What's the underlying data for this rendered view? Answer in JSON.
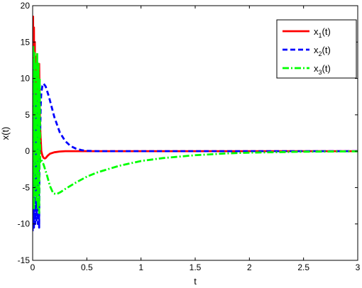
{
  "chart_data": {
    "type": "line",
    "xlabel": "t",
    "ylabel": "x(t)",
    "xlim": [
      0,
      3
    ],
    "ylim": [
      -15,
      20
    ],
    "xticks": [
      0,
      0.5,
      1,
      1.5,
      2,
      2.5,
      3
    ],
    "xtick_labels": [
      "0",
      "0.5",
      "1",
      "1.5",
      "2",
      "2.5",
      "3"
    ],
    "yticks": [
      -15,
      -10,
      -5,
      0,
      5,
      10,
      15,
      20
    ],
    "ytick_labels": [
      "-15",
      "-10",
      "-5",
      "0",
      "5",
      "10",
      "15",
      "20"
    ],
    "grid": false,
    "legend_position": "top-right",
    "series": [
      {
        "name": "x1(t)",
        "legend": {
          "base": "x",
          "sub": "1",
          "suffix": "(t)"
        },
        "color": "#ff0000",
        "style": "solid",
        "x": [
          0,
          0.004,
          0.008,
          0.012,
          0.016,
          0.02,
          0.025,
          0.03,
          0.035,
          0.04,
          0.045,
          0.05,
          0.055,
          0.06,
          0.065,
          0.07,
          0.08,
          0.09,
          0.1,
          0.11,
          0.12,
          0.14,
          0.16,
          0.2,
          0.25,
          0.3,
          0.4,
          0.5,
          0.7,
          1.0,
          1.5,
          2.0,
          3.0
        ],
        "y": [
          6,
          18.5,
          -2,
          17,
          3,
          15,
          5,
          13,
          7,
          12.5,
          8,
          12,
          9,
          12,
          6,
          3,
          0,
          -0.6,
          -0.9,
          -1.0,
          -0.95,
          -0.6,
          -0.35,
          -0.15,
          -0.05,
          0,
          0,
          0,
          0,
          0,
          0,
          0,
          0
        ]
      },
      {
        "name": "x2(t)",
        "legend": {
          "base": "x",
          "sub": "2",
          "suffix": "(t)"
        },
        "color": "#0000ff",
        "style": "dashed",
        "x": [
          0,
          0.006,
          0.012,
          0.018,
          0.024,
          0.03,
          0.036,
          0.042,
          0.048,
          0.054,
          0.06,
          0.065,
          0.07,
          0.075,
          0.08,
          0.09,
          0.1,
          0.12,
          0.15,
          0.2,
          0.25,
          0.3,
          0.35,
          0.4,
          0.45,
          0.5,
          0.6,
          0.8,
          1.0,
          1.5,
          2.0,
          3.0
        ],
        "y": [
          -11,
          11.5,
          -10.5,
          10.5,
          -10,
          9,
          -9.5,
          8,
          -10,
          6,
          -10.5,
          4,
          3,
          6.5,
          8,
          9,
          9.3,
          8.9,
          7.5,
          4.7,
          2.6,
          1.4,
          0.7,
          0.35,
          0.15,
          0.05,
          0,
          0,
          0,
          0,
          0,
          0
        ]
      },
      {
        "name": "x3(t)",
        "legend": {
          "base": "x",
          "sub": "3",
          "suffix": "(t)"
        },
        "color": "#00ff00",
        "style": "dashdot",
        "x": [
          0,
          0.006,
          0.012,
          0.018,
          0.024,
          0.03,
          0.036,
          0.042,
          0.048,
          0.054,
          0.06,
          0.065,
          0.07,
          0.08,
          0.1,
          0.13,
          0.16,
          0.19,
          0.22,
          0.26,
          0.3,
          0.4,
          0.5,
          0.6,
          0.8,
          1.0,
          1.2,
          1.5,
          1.8,
          2.0,
          2.5,
          3.0
        ],
        "y": [
          -7,
          14.5,
          -8,
          13.5,
          -6,
          12,
          -7,
          13.5,
          -8,
          12,
          -8.5,
          10,
          -1.5,
          -1.2,
          -1.8,
          -3.2,
          -4.8,
          -5.8,
          -5.9,
          -5.6,
          -5.2,
          -4.3,
          -3.5,
          -2.9,
          -2.0,
          -1.35,
          -0.95,
          -0.55,
          -0.3,
          -0.2,
          -0.07,
          -0.02
        ]
      }
    ]
  }
}
